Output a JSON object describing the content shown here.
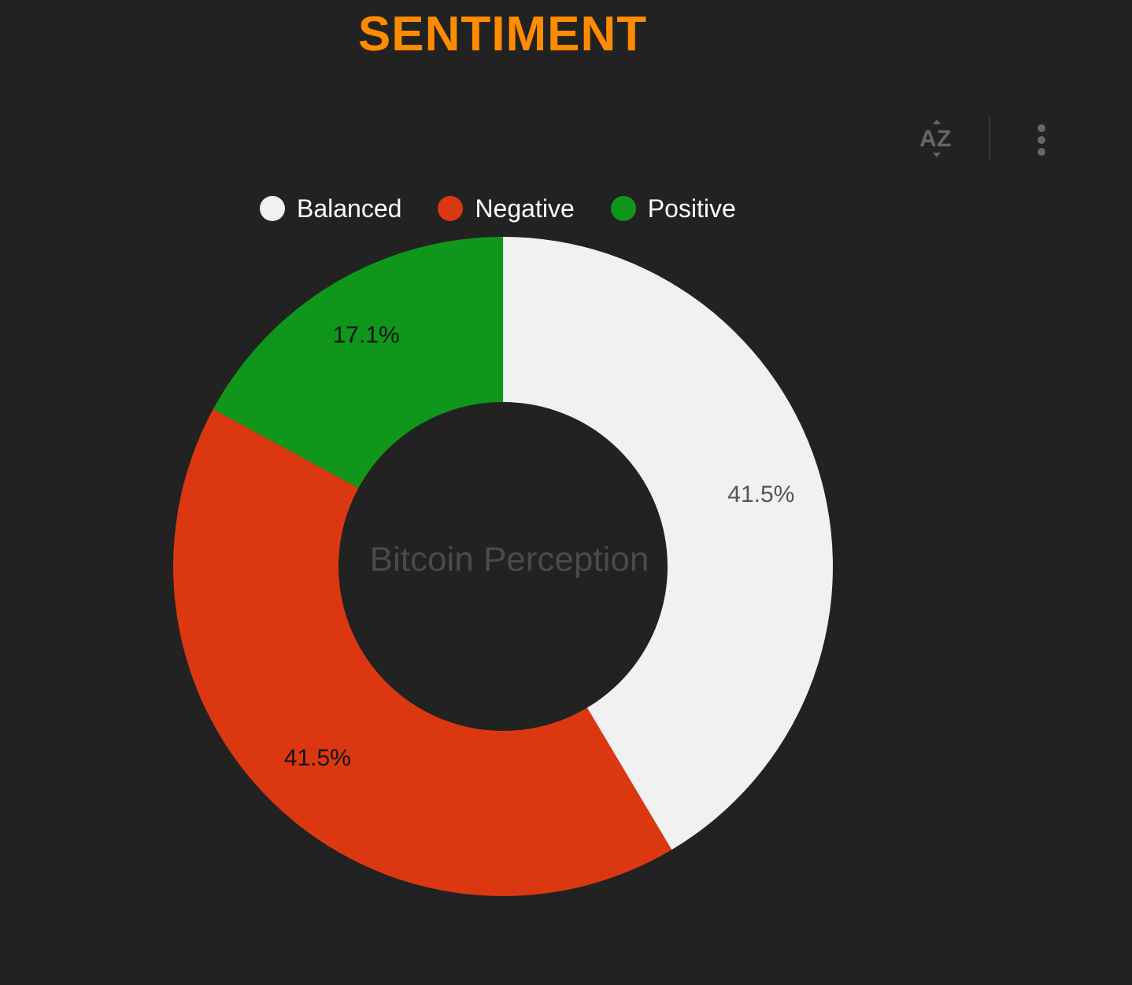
{
  "title": "SENTIMENT",
  "colors": {
    "title": "#ff8c00",
    "background": "#222222",
    "toolbar_icon": "#666666"
  },
  "toolbar": {
    "sort_icon": "sort-az-icon",
    "more_icon": "more-vertical-icon"
  },
  "legend": {
    "position": "top",
    "items": [
      {
        "label": "Balanced",
        "color": "#f1f1f1"
      },
      {
        "label": "Negative",
        "color": "#db3811"
      },
      {
        "label": "Positive",
        "color": "#10961a"
      }
    ]
  },
  "chart_data": {
    "type": "pie",
    "donut": true,
    "center_label": "Bitcoin Perception",
    "categories": [
      "Balanced",
      "Negative",
      "Positive"
    ],
    "values": [
      41.5,
      41.5,
      17.1
    ],
    "data_labels": [
      "41.5%",
      "41.5%",
      "17.1%"
    ],
    "colors": [
      "#f1f1f1",
      "#db3811",
      "#10961a"
    ],
    "label_colors": [
      "#555555",
      "#111111",
      "#111111"
    ],
    "start": "top",
    "direction": "clockwise"
  }
}
